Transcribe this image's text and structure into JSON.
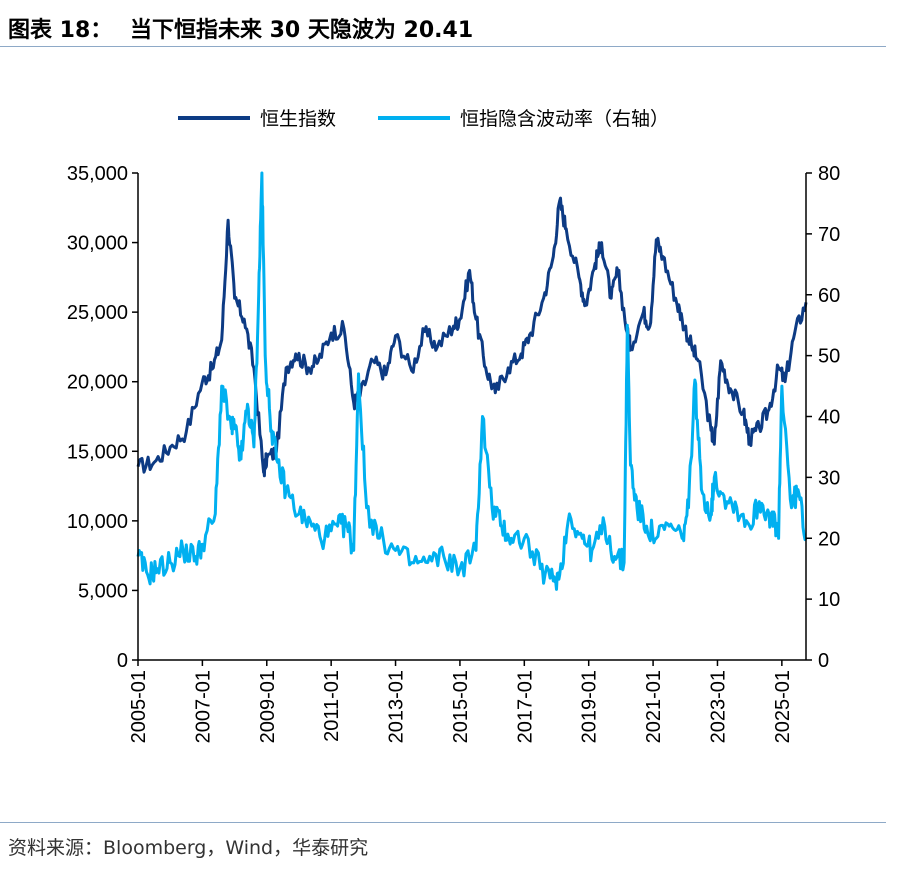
{
  "figure": {
    "label": "图表 18：",
    "title": "当下恒指未来 30 天隐波为 20.41"
  },
  "source": "资料来源：Bloomberg，Wind，华泰研究",
  "colors": {
    "hsi": "#0d3b84",
    "vol": "#00b0f0",
    "rule": "#8ea9c7"
  },
  "chart_data": {
    "type": "line",
    "legend": [
      "恒生指数",
      "恒指隐含波动率（右轴）"
    ],
    "x_tick_labels": [
      "2005-01",
      "2007-01",
      "2009-01",
      "2011-01",
      "2013-01",
      "2015-01",
      "2017-01",
      "2019-01",
      "2021-01",
      "2023-01",
      "2025-01"
    ],
    "x_range": [
      2005.0,
      2025.75
    ],
    "y_left": {
      "range": [
        0,
        35000
      ],
      "ticks": [
        0,
        5000,
        10000,
        15000,
        20000,
        25000,
        30000,
        35000
      ],
      "tick_labels": [
        "0",
        "5,000",
        "10,000",
        "15,000",
        "20,000",
        "25,000",
        "30,000",
        "35,000"
      ]
    },
    "y_right": {
      "range": [
        0,
        80
      ],
      "ticks": [
        0,
        10,
        20,
        30,
        40,
        50,
        60,
        70,
        80
      ],
      "tick_labels": [
        "0",
        "10",
        "20",
        "30",
        "40",
        "50",
        "60",
        "70",
        "80"
      ]
    },
    "series": [
      {
        "name": "恒生指数",
        "axis": "left",
        "x": [
          2005.0,
          2005.5,
          2006.0,
          2006.5,
          2007.0,
          2007.3,
          2007.6,
          2007.8,
          2008.0,
          2008.3,
          2008.6,
          2008.9,
          2009.0,
          2009.3,
          2009.6,
          2009.9,
          2010.3,
          2010.6,
          2011.0,
          2011.4,
          2011.7,
          2011.9,
          2012.3,
          2012.7,
          2013.0,
          2013.5,
          2013.9,
          2014.3,
          2014.8,
          2015.0,
          2015.3,
          2015.5,
          2015.8,
          2016.1,
          2016.5,
          2016.9,
          2017.2,
          2017.6,
          2017.9,
          2018.1,
          2018.3,
          2018.7,
          2018.9,
          2019.2,
          2019.4,
          2019.7,
          2019.9,
          2020.2,
          2020.3,
          2020.7,
          2020.9,
          2021.1,
          2021.3,
          2021.7,
          2021.9,
          2022.2,
          2022.4,
          2022.8,
          2022.9,
          2023.1,
          2023.4,
          2023.8,
          2024.0,
          2024.3,
          2024.6,
          2024.9,
          2025.1,
          2025.4,
          2025.75
        ],
        "y": [
          13900,
          14200,
          15300,
          16400,
          20000,
          20900,
          23000,
          31600,
          26000,
          24500,
          21000,
          13500,
          14500,
          15000,
          21000,
          22000,
          21000,
          21500,
          23500,
          23800,
          18500,
          19000,
          21500,
          20500,
          23300,
          20800,
          23600,
          22500,
          24000,
          24500,
          28000,
          24500,
          21000,
          19200,
          21000,
          22000,
          23500,
          26000,
          29000,
          33000,
          31000,
          27500,
          25500,
          28500,
          30000,
          26000,
          28000,
          23500,
          22500,
          25000,
          24000,
          30200,
          29000,
          26000,
          24500,
          22500,
          21500,
          16500,
          15500,
          21500,
          19500,
          17800,
          15800,
          16700,
          18000,
          21000,
          20000,
          23500,
          25700
        ]
      },
      {
        "name": "恒指隐含波动率（右轴）",
        "axis": "right",
        "x": [
          2005.0,
          2005.3,
          2005.6,
          2006.0,
          2006.4,
          2006.8,
          2007.0,
          2007.4,
          2007.6,
          2007.9,
          2008.0,
          2008.2,
          2008.4,
          2008.6,
          2008.75,
          2008.85,
          2008.95,
          2009.1,
          2009.3,
          2009.6,
          2010.0,
          2010.4,
          2010.8,
          2011.2,
          2011.5,
          2011.7,
          2011.85,
          2012.1,
          2012.5,
          2013.0,
          2013.5,
          2014.0,
          2014.5,
          2015.0,
          2015.5,
          2015.7,
          2016.0,
          2016.3,
          2016.6,
          2017.0,
          2017.5,
          2017.9,
          2018.1,
          2018.4,
          2018.8,
          2019.1,
          2019.5,
          2019.8,
          2020.1,
          2020.2,
          2020.3,
          2020.5,
          2020.8,
          2021.1,
          2021.5,
          2021.9,
          2022.1,
          2022.3,
          2022.5,
          2022.8,
          2022.9,
          2023.2,
          2023.6,
          2024.0,
          2024.3,
          2024.6,
          2024.8,
          2024.9,
          2025.0,
          2025.3,
          2025.5,
          2025.75
        ],
        "y": [
          17,
          14,
          15,
          16,
          18,
          17,
          19,
          24,
          45,
          38,
          38,
          33,
          42,
          35,
          60,
          80,
          50,
          40,
          33,
          28,
          24,
          22,
          20,
          22,
          22,
          18,
          47,
          25,
          20,
          18,
          16,
          16,
          17,
          15,
          18,
          40,
          25,
          22,
          20,
          20,
          15,
          13,
          14,
          24,
          20,
          18,
          22,
          17,
          16,
          55,
          32,
          25,
          22,
          20,
          22,
          20,
          25,
          46,
          28,
          24,
          30,
          27,
          25,
          22,
          26,
          24,
          22,
          20,
          45,
          25,
          28,
          20
        ]
      }
    ]
  }
}
